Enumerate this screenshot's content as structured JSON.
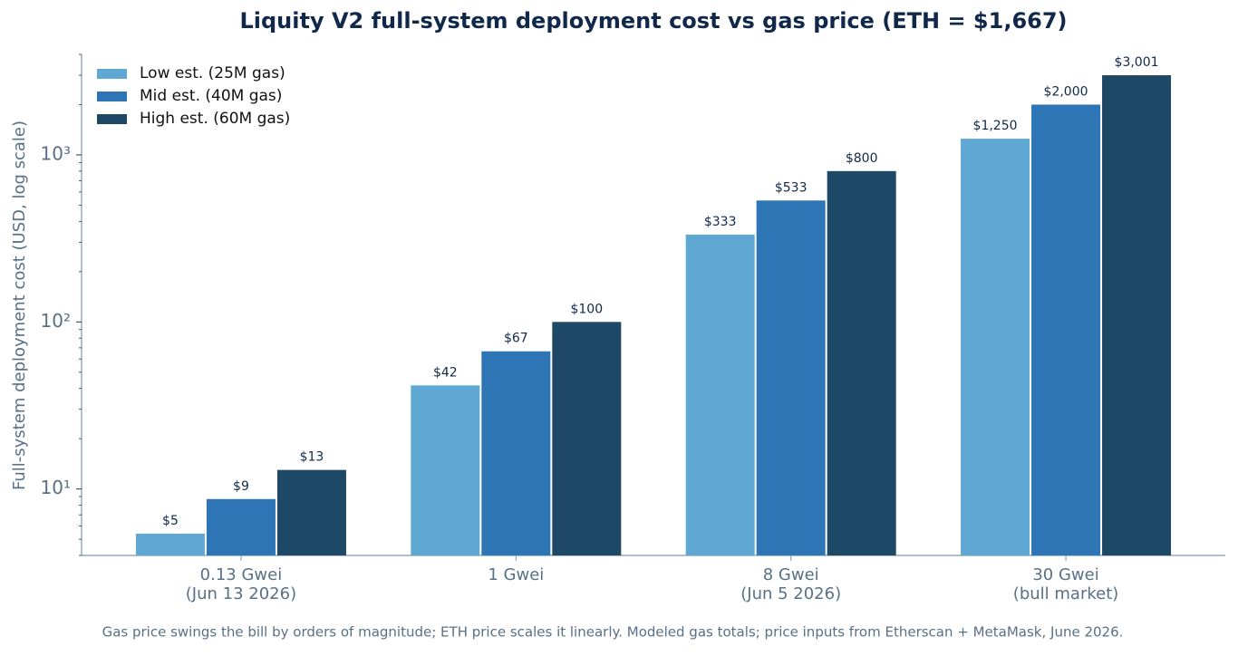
{
  "chart_data": {
    "type": "bar",
    "title": "Liquity V2 full-system deployment cost vs gas price  (ETH = $1,667)",
    "y_label": "Full-system deployment cost (USD, log scale)",
    "caption": "Gas price swings the bill by orders of magnitude; ETH price scales it linearly. Modeled gas totals; price inputs from Etherscan + MetaMask, June 2026.",
    "categories": [
      [
        "0.13 Gwei",
        "(Jun 13 2026)"
      ],
      [
        "1 Gwei"
      ],
      [
        "8 Gwei",
        "(Jun 5 2026)"
      ],
      [
        "30 Gwei",
        "(bull market)"
      ]
    ],
    "series": [
      {
        "name": "Low est. (25M gas)",
        "color": "#5fa8d3",
        "values": [
          5.4,
          41.7,
          333.4,
          1250.3
        ],
        "value_labels": [
          "$5",
          "$42",
          "$333",
          "$1,250"
        ]
      },
      {
        "name": "Mid est. (40M gas)",
        "color": "#2e75b6",
        "values": [
          8.7,
          66.7,
          533.4,
          2000.4
        ],
        "value_labels": [
          "$9",
          "$67",
          "$533",
          "$2,000"
        ]
      },
      {
        "name": "High est. (60M gas)",
        "color": "#1d4866",
        "values": [
          13.0,
          100.0,
          800.2,
          3000.6
        ],
        "value_labels": [
          "$13",
          "$100",
          "$800",
          "$3,001"
        ]
      }
    ],
    "log_scale": true,
    "ylim": [
      4,
      4000
    ],
    "yticks": [
      {
        "value": 10,
        "label": "10¹"
      },
      {
        "value": 100,
        "label": "10²"
      },
      {
        "value": 1000,
        "label": "10³"
      }
    ],
    "minor_yticks": [
      4,
      5,
      6,
      7,
      8,
      9,
      20,
      30,
      40,
      50,
      60,
      70,
      80,
      90,
      200,
      300,
      400,
      500,
      600,
      700,
      800,
      900,
      2000,
      3000,
      4000
    ],
    "legend": "upper-left"
  }
}
